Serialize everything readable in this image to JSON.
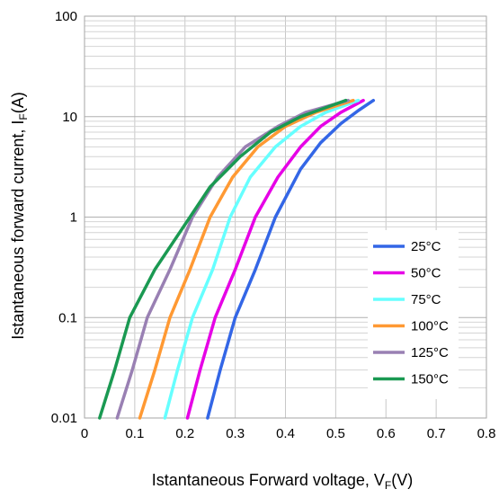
{
  "chart_data": {
    "type": "line",
    "title": "",
    "xlabel": "Istantaneous Forward voltage, V",
    "xlabel_sub": "F",
    "xlabel_unit": "(V)",
    "ylabel": "Istantaneous forward current, I",
    "ylabel_sub": "F",
    "ylabel_unit": "(A)",
    "y_scale": "log",
    "xlim": [
      0,
      0.8
    ],
    "ylim": [
      0.01,
      100
    ],
    "x_ticks": [
      "0",
      "0.1",
      "0.2",
      "0.3",
      "0.4",
      "0.5",
      "0.6",
      "0.7",
      "0.8"
    ],
    "y_ticks": [
      "0.01",
      "0.1",
      "1",
      "10",
      "100"
    ],
    "grid": true,
    "legend_position": "bottom-right",
    "series": [
      {
        "name": "25°C",
        "color": "#3366e6",
        "x": [
          0.245,
          0.27,
          0.3,
          0.34,
          0.38,
          0.43,
          0.47,
          0.51,
          0.545,
          0.575
        ],
        "y": [
          0.01,
          0.03,
          0.1,
          0.3,
          1,
          3,
          5.5,
          8.5,
          11.5,
          14.5
        ]
      },
      {
        "name": "50°C",
        "color": "#e600e6",
        "x": [
          0.205,
          0.23,
          0.26,
          0.3,
          0.34,
          0.385,
          0.43,
          0.47,
          0.51,
          0.555
        ],
        "y": [
          0.01,
          0.03,
          0.1,
          0.3,
          1,
          2.5,
          5,
          8,
          11,
          14.5
        ]
      },
      {
        "name": "75°C",
        "color": "#66ffff",
        "x": [
          0.16,
          0.185,
          0.215,
          0.255,
          0.29,
          0.33,
          0.38,
          0.43,
          0.48,
          0.545
        ],
        "y": [
          0.01,
          0.03,
          0.1,
          0.3,
          1,
          2.5,
          5,
          8,
          11,
          14.5
        ]
      },
      {
        "name": "100°C",
        "color": "#ff9933",
        "x": [
          0.11,
          0.14,
          0.17,
          0.21,
          0.25,
          0.295,
          0.345,
          0.4,
          0.46,
          0.535
        ],
        "y": [
          0.01,
          0.03,
          0.1,
          0.3,
          1,
          2.5,
          5,
          8,
          11,
          14.5
        ]
      },
      {
        "name": "125°C",
        "color": "#9980b3",
        "x": [
          0.065,
          0.095,
          0.125,
          0.17,
          0.215,
          0.265,
          0.32,
          0.385,
          0.44,
          0.525
        ],
        "y": [
          0.01,
          0.03,
          0.1,
          0.3,
          1,
          2.5,
          5,
          8,
          11,
          14.5
        ]
      },
      {
        "name": "150°C",
        "color": "#1a9952",
        "x": [
          0.03,
          0.06,
          0.09,
          0.14,
          0.21,
          0.25,
          0.31,
          0.37,
          0.43,
          0.52
        ],
        "y": [
          0.01,
          0.03,
          0.1,
          0.3,
          1,
          2,
          4,
          7,
          10,
          14.5
        ]
      }
    ]
  }
}
